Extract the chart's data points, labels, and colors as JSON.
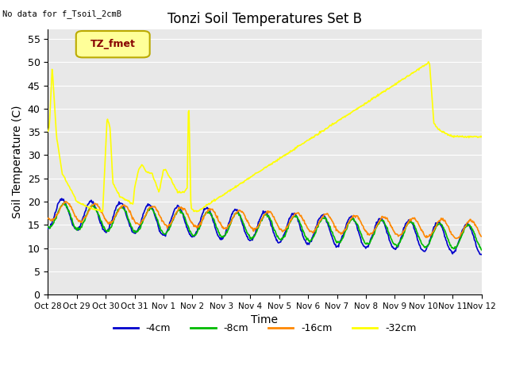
{
  "title": "Tonzi Soil Temperatures Set B",
  "no_data_label": "No data for f_Tsoil_2cmB",
  "xlabel": "Time",
  "ylabel": "Soil Temperature (C)",
  "legend_label": "TZ_fmet",
  "ylim": [
    0,
    57
  ],
  "yticks": [
    0,
    5,
    10,
    15,
    20,
    25,
    30,
    35,
    40,
    45,
    50,
    55
  ],
  "x_tick_labels": [
    "Oct 28",
    "Oct 29",
    "Oct 30",
    "Oct 31",
    "Nov 1",
    "Nov 2",
    "Nov 3",
    "Nov 4",
    "Nov 5",
    "Nov 6",
    "Nov 7",
    "Nov 8",
    "Nov 9",
    "Nov 10",
    "Nov 11",
    "Nov 12"
  ],
  "colors": {
    "4cm": "#0000cc",
    "8cm": "#00bb00",
    "16cm": "#ff8800",
    "32cm": "#ffff00",
    "legend_bg": "#ffff99",
    "legend_border": "#bbaa00",
    "legend_text": "#880000",
    "plot_bg": "#e8e8e8",
    "grid": "#ffffff"
  },
  "figsize": [
    6.4,
    4.8
  ],
  "dpi": 100
}
